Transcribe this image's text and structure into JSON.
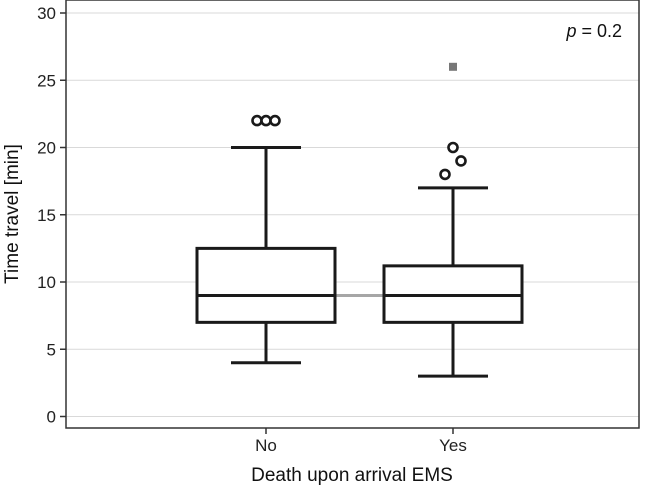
{
  "chart_data": {
    "type": "boxplot",
    "xlabel": "Death upon arrival EMS",
    "ylabel": "Time travel [min]",
    "ylim": [
      0,
      30
    ],
    "yticks": [
      0,
      5,
      10,
      15,
      20,
      25,
      30
    ],
    "grid": "horizontal",
    "categories": [
      "No",
      "Yes"
    ],
    "boxes": [
      {
        "category": "No",
        "whisker_low": 4,
        "q1": 7,
        "median": 9,
        "q3": 12.5,
        "whisker_high": 20,
        "outliers": [
          22,
          22,
          22
        ],
        "extremes": []
      },
      {
        "category": "Yes",
        "whisker_low": 3,
        "q1": 7,
        "median": 9,
        "q3": 11.2,
        "whisker_high": 17,
        "outliers": [
          18,
          19,
          20
        ],
        "extremes": [
          26
        ]
      }
    ],
    "annotation": {
      "prefix": "p",
      "text": " = 0.2"
    },
    "colors": {
      "box": "#1a1a1a",
      "grid": "#d9d9d9",
      "median_link": "#a6a6a6",
      "extreme": "#777777"
    }
  }
}
